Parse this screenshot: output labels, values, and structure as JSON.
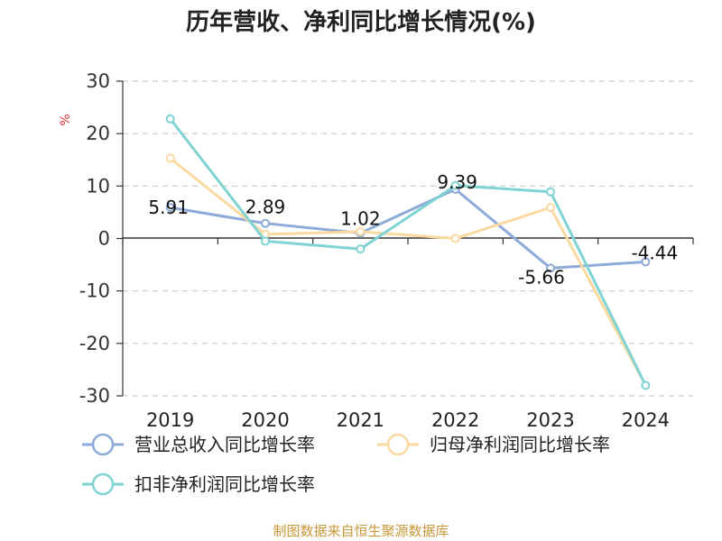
{
  "chart_data": {
    "type": "line",
    "title": "历年营收、净利同比增长情况(%)",
    "ylabel": "%",
    "x": [
      "2019",
      "2020",
      "2021",
      "2022",
      "2023",
      "2024"
    ],
    "ylim": [
      -30,
      30
    ],
    "yticks": [
      "30",
      "20",
      "10",
      "0",
      "-10",
      "-20",
      "-30"
    ],
    "ytick_values": [
      30,
      20,
      10,
      0,
      -10,
      -20,
      -30
    ],
    "grid": true,
    "legend_position": "bottom",
    "series": [
      {
        "name": "营业总收入同比增长率",
        "color": "#8eaad8",
        "values": [
          5.91,
          2.89,
          1.02,
          9.39,
          -5.66,
          -4.44
        ],
        "labels": [
          "5.91",
          "2.89",
          "1.02",
          "9.39",
          "-5.66",
          "-4.44"
        ]
      },
      {
        "name": "归母净利润同比增长率",
        "color": "#fad9a1",
        "values": [
          15.3,
          0.8,
          1.3,
          0.0,
          5.9,
          -28.0
        ]
      },
      {
        "name": "扣非净利润同比增长率",
        "color": "#7fd3d3",
        "values": [
          22.8,
          -0.5,
          -2.0,
          10.1,
          8.9,
          -28.0
        ]
      }
    ]
  },
  "source": "制图数据来自恒生聚源数据库"
}
